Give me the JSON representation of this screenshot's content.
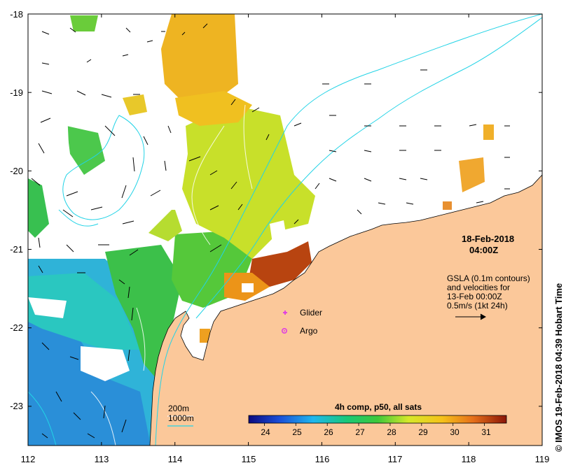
{
  "map": {
    "x_ticks": [
      "112",
      "113",
      "114",
      "115",
      "116",
      "117",
      "118",
      "119"
    ],
    "y_ticks": [
      "-18",
      "-19",
      "-20",
      "-21",
      "-22",
      "-23"
    ],
    "lon_range": [
      112,
      119
    ],
    "lat_range": [
      -23.5,
      -18
    ],
    "land_color": "#fbc89a",
    "isobath_color": "#22d3e6",
    "contour_color": "#ffffff"
  },
  "annotations": {
    "date": "18-Feb-2018",
    "time": "04:00Z",
    "gsla_line1": "GSLA (0.1m contours)",
    "gsla_line2": "and velocities for",
    "gsla_line3": "13-Feb 00:00Z",
    "gsla_line4": "0.5m/s (1kt 24h)"
  },
  "legend": {
    "glider": "Glider",
    "argo": "Argo",
    "isobath_200": "200m",
    "isobath_1000": "1000m",
    "glider_color": "#e040e0",
    "argo_color": "#e040e0"
  },
  "colorbar": {
    "title": "4h comp, p50, all sats",
    "ticks": [
      "24",
      "25",
      "26",
      "27",
      "28",
      "29",
      "30",
      "31"
    ],
    "range": [
      23.5,
      31.7
    ]
  },
  "credit": "© IMOS 19-Feb-2018 04:39 Hobart Time"
}
